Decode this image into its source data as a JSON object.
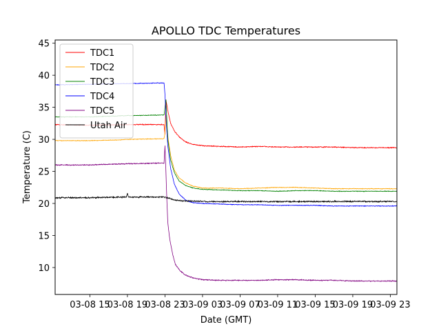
{
  "chart_data": {
    "type": "line",
    "title": "APOLLO TDC Temperatures",
    "xlabel": "Date (GMT)",
    "ylabel": "Temperature (C)",
    "xlim": [
      11.3,
      47.7
    ],
    "ylim": [
      5.8,
      45.5
    ],
    "x_unit": "hours since 03-08 00:00 GMT",
    "x_ticks": [
      {
        "value": 15,
        "label": "03-08 15"
      },
      {
        "value": 19,
        "label": "03-08 19"
      },
      {
        "value": 23,
        "label": "03-08 23"
      },
      {
        "value": 27,
        "label": "03-09 03"
      },
      {
        "value": 31,
        "label": "03-09 07"
      },
      {
        "value": 35,
        "label": "03-09 11"
      },
      {
        "value": 39,
        "label": "03-09 15"
      },
      {
        "value": 43,
        "label": "03-09 19"
      },
      {
        "value": 47,
        "label": "03-09 23"
      }
    ],
    "y_ticks": [
      {
        "value": 10,
        "label": "10"
      },
      {
        "value": 15,
        "label": "15"
      },
      {
        "value": 20,
        "label": "20"
      },
      {
        "value": 25,
        "label": "25"
      },
      {
        "value": 30,
        "label": "30"
      },
      {
        "value": 35,
        "label": "35"
      },
      {
        "value": 40,
        "label": "40"
      },
      {
        "value": 45,
        "label": "45"
      }
    ],
    "legend_position": "top-left",
    "series": [
      {
        "name": "TDC1",
        "color": "#ff0000",
        "noise": 0.12,
        "points": [
          [
            11.3,
            32.3
          ],
          [
            15,
            32.2
          ],
          [
            19,
            32.3
          ],
          [
            22.9,
            32.3
          ],
          [
            23.0,
            30.8
          ],
          [
            23.1,
            36.2
          ],
          [
            23.3,
            34.5
          ],
          [
            23.6,
            32.5
          ],
          [
            24.0,
            31.3
          ],
          [
            24.5,
            30.4
          ],
          [
            25.2,
            29.6
          ],
          [
            26.0,
            29.2
          ],
          [
            27.0,
            29.0
          ],
          [
            29,
            28.9
          ],
          [
            31,
            28.8
          ],
          [
            33,
            28.9
          ],
          [
            35,
            28.8
          ],
          [
            37,
            28.8
          ],
          [
            39,
            28.8
          ],
          [
            41,
            28.8
          ],
          [
            43,
            28.7
          ],
          [
            45,
            28.7
          ],
          [
            47.7,
            28.7
          ]
        ]
      },
      {
        "name": "TDC2",
        "color": "#ffa500",
        "noise": 0.08,
        "points": [
          [
            11.3,
            29.8
          ],
          [
            15,
            29.8
          ],
          [
            18,
            29.9
          ],
          [
            19,
            30.0
          ],
          [
            22.9,
            30.1
          ],
          [
            23.0,
            31.0
          ],
          [
            23.1,
            33.8
          ],
          [
            23.3,
            30.5
          ],
          [
            23.6,
            27.5
          ],
          [
            24.0,
            25.2
          ],
          [
            24.5,
            24.0
          ],
          [
            25.2,
            23.2
          ],
          [
            26.0,
            22.7
          ],
          [
            27.0,
            22.4
          ],
          [
            29,
            22.4
          ],
          [
            31,
            22.3
          ],
          [
            33,
            22.4
          ],
          [
            35,
            22.5
          ],
          [
            37,
            22.5
          ],
          [
            39,
            22.4
          ],
          [
            41,
            22.3
          ],
          [
            43,
            22.3
          ],
          [
            45,
            22.3
          ],
          [
            47.7,
            22.3
          ]
        ]
      },
      {
        "name": "TDC3",
        "color": "#008000",
        "noise": 0.08,
        "points": [
          [
            11.3,
            33.5
          ],
          [
            15,
            33.5
          ],
          [
            19,
            33.7
          ],
          [
            22.9,
            33.8
          ],
          [
            23.0,
            35.0
          ],
          [
            23.1,
            36.3
          ],
          [
            23.3,
            30.0
          ],
          [
            23.6,
            26.8
          ],
          [
            24.0,
            24.8
          ],
          [
            24.5,
            23.5
          ],
          [
            25.2,
            22.8
          ],
          [
            26.0,
            22.4
          ],
          [
            27.0,
            22.2
          ],
          [
            29,
            22.1
          ],
          [
            31,
            22.0
          ],
          [
            33,
            22.0
          ],
          [
            35,
            21.9
          ],
          [
            37,
            22.0
          ],
          [
            39,
            22.0
          ],
          [
            41,
            21.9
          ],
          [
            43,
            21.9
          ],
          [
            45,
            21.9
          ],
          [
            47.7,
            21.9
          ]
        ]
      },
      {
        "name": "TDC4",
        "color": "#0000ff",
        "noise": 0.08,
        "points": [
          [
            11.3,
            38.5
          ],
          [
            15,
            38.6
          ],
          [
            19,
            38.7
          ],
          [
            22.9,
            38.8
          ],
          [
            23.0,
            37.0
          ],
          [
            23.1,
            33.5
          ],
          [
            23.3,
            29.0
          ],
          [
            23.6,
            25.5
          ],
          [
            24.0,
            23.0
          ],
          [
            24.5,
            21.5
          ],
          [
            25.2,
            20.5
          ],
          [
            26.0,
            20.1
          ],
          [
            27.0,
            20.0
          ],
          [
            29,
            19.9
          ],
          [
            31,
            19.8
          ],
          [
            33,
            19.8
          ],
          [
            35,
            19.7
          ],
          [
            37,
            19.7
          ],
          [
            39,
            19.7
          ],
          [
            41,
            19.6
          ],
          [
            43,
            19.6
          ],
          [
            45,
            19.6
          ],
          [
            47.7,
            19.6
          ]
        ]
      },
      {
        "name": "TDC5",
        "color": "#800080",
        "noise": 0.12,
        "points": [
          [
            11.3,
            26.0
          ],
          [
            15,
            26.0
          ],
          [
            19,
            26.2
          ],
          [
            22.9,
            26.3
          ],
          [
            23.0,
            29.0
          ],
          [
            23.1,
            25.0
          ],
          [
            23.2,
            20.5
          ],
          [
            23.3,
            17.0
          ],
          [
            23.5,
            14.5
          ],
          [
            23.8,
            12.2
          ],
          [
            24.1,
            10.5
          ],
          [
            24.6,
            9.5
          ],
          [
            25.2,
            8.8
          ],
          [
            26.0,
            8.4
          ],
          [
            27.0,
            8.1
          ],
          [
            29,
            8.0
          ],
          [
            31,
            8.0
          ],
          [
            33,
            8.0
          ],
          [
            35,
            8.1
          ],
          [
            37,
            8.1
          ],
          [
            39,
            8.0
          ],
          [
            41,
            8.0
          ],
          [
            43,
            7.9
          ],
          [
            45,
            7.9
          ],
          [
            47.7,
            7.9
          ]
        ]
      },
      {
        "name": "Utah Air",
        "color": "#000000",
        "noise": 0.18,
        "points": [
          [
            11.3,
            20.9
          ],
          [
            15,
            20.9
          ],
          [
            18.9,
            21.0
          ],
          [
            19.0,
            21.6
          ],
          [
            19.1,
            21.0
          ],
          [
            22.9,
            21.0
          ],
          [
            23.5,
            20.8
          ],
          [
            24.0,
            20.5
          ],
          [
            25.0,
            20.4
          ],
          [
            27,
            20.3
          ],
          [
            29,
            20.3
          ],
          [
            31,
            20.3
          ],
          [
            33,
            20.3
          ],
          [
            35,
            20.3
          ],
          [
            37,
            20.3
          ],
          [
            39,
            20.3
          ],
          [
            41,
            20.3
          ],
          [
            43,
            20.3
          ],
          [
            45,
            20.3
          ],
          [
            47.7,
            20.3
          ]
        ]
      }
    ]
  }
}
